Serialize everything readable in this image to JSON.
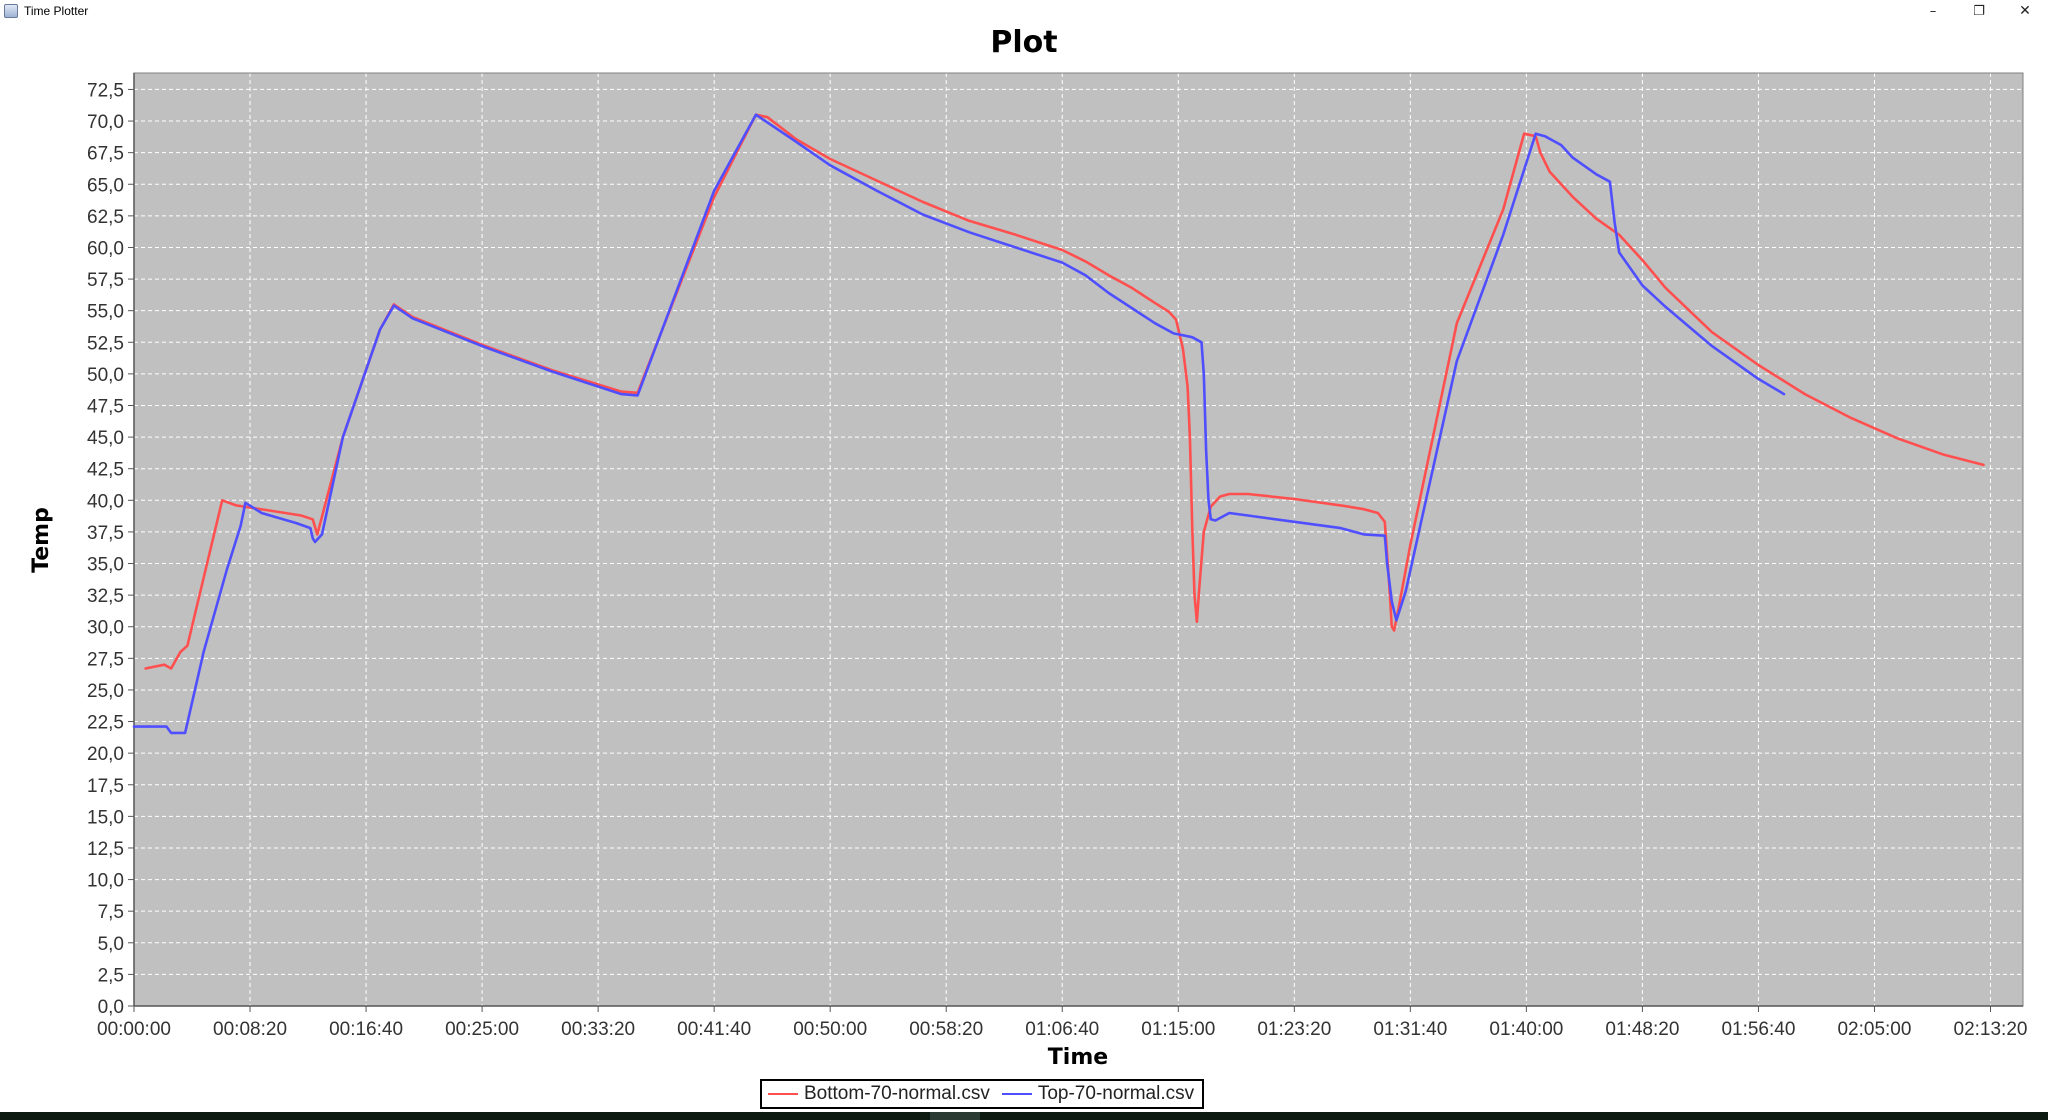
{
  "window": {
    "title": "Time Plotter",
    "minimize_icon": "minimize-icon",
    "restore_icon": "restore-icon",
    "close_icon": "close-icon"
  },
  "colors": {
    "plot_background": "#c0c0c0",
    "grid": "#ffffff",
    "bottom_series": "#ff4f4f",
    "top_series": "#4f4fff"
  },
  "chart_data": {
    "type": "line",
    "title": "Plot",
    "xlabel": "Time",
    "ylabel": "Temp",
    "x_unit": "hh:mm:ss",
    "xlim": [
      "00:00:00",
      "02:15:40"
    ],
    "ylim": [
      0,
      73.8
    ],
    "x_ticks": [
      "00:00:00",
      "00:08:20",
      "00:16:40",
      "00:25:00",
      "00:33:20",
      "00:41:40",
      "00:50:00",
      "00:58:20",
      "01:06:40",
      "01:15:00",
      "01:23:20",
      "01:31:40",
      "01:40:00",
      "01:48:20",
      "01:56:40",
      "02:05:00",
      "02:13:20"
    ],
    "y_ticks": [
      "0,0",
      "2,5",
      "5,0",
      "7,5",
      "10,0",
      "12,5",
      "15,0",
      "17,5",
      "20,0",
      "22,5",
      "25,0",
      "27,5",
      "30,0",
      "32,5",
      "35,0",
      "37,5",
      "40,0",
      "42,5",
      "45,0",
      "47,5",
      "50,0",
      "52,5",
      "55,0",
      "57,5",
      "60,0",
      "62,5",
      "65,0",
      "67,5",
      "70,0",
      "72,5"
    ],
    "grid": true,
    "legend_position": "bottom-center",
    "series": [
      {
        "name": "Bottom-70-normal.csv",
        "color": "#ff4f4f",
        "points": [
          [
            "00:00:50",
            26.7
          ],
          [
            "00:02:10",
            27.0
          ],
          [
            "00:02:40",
            26.7
          ],
          [
            "00:03:20",
            28.0
          ],
          [
            "00:03:50",
            28.5
          ],
          [
            "00:06:20",
            40.0
          ],
          [
            "00:07:20",
            39.6
          ],
          [
            "00:09:40",
            39.2
          ],
          [
            "00:12:00",
            38.8
          ],
          [
            "00:12:50",
            38.5
          ],
          [
            "00:13:10",
            37.3
          ],
          [
            "00:15:00",
            45.0
          ],
          [
            "00:17:40",
            53.5
          ],
          [
            "00:18:40",
            55.5
          ],
          [
            "00:20:00",
            54.5
          ],
          [
            "00:25:00",
            52.3
          ],
          [
            "00:30:00",
            50.3
          ],
          [
            "00:35:00",
            48.6
          ],
          [
            "00:36:10",
            48.5
          ],
          [
            "00:41:40",
            64.0
          ],
          [
            "00:44:40",
            70.5
          ],
          [
            "00:45:30",
            70.3
          ],
          [
            "00:47:30",
            68.6
          ],
          [
            "00:50:00",
            67.0
          ],
          [
            "00:53:20",
            65.3
          ],
          [
            "00:56:40",
            63.6
          ],
          [
            "01:00:00",
            62.1
          ],
          [
            "01:03:20",
            61.0
          ],
          [
            "01:06:40",
            59.8
          ],
          [
            "01:08:20",
            58.9
          ],
          [
            "01:10:00",
            57.8
          ],
          [
            "01:11:40",
            56.8
          ],
          [
            "01:13:20",
            55.6
          ],
          [
            "01:14:20",
            54.9
          ],
          [
            "01:14:50",
            54.3
          ],
          [
            "01:15:20",
            52.0
          ],
          [
            "01:15:40",
            49.0
          ],
          [
            "01:15:50",
            45.0
          ],
          [
            "01:16:00",
            38.0
          ],
          [
            "01:16:10",
            32.5
          ],
          [
            "01:16:20",
            30.4
          ],
          [
            "01:16:30",
            33.0
          ],
          [
            "01:16:50",
            37.5
          ],
          [
            "01:17:20",
            39.5
          ],
          [
            "01:18:00",
            40.3
          ],
          [
            "01:18:40",
            40.5
          ],
          [
            "01:20:00",
            40.5
          ],
          [
            "01:23:20",
            40.1
          ],
          [
            "01:26:40",
            39.6
          ],
          [
            "01:28:20",
            39.3
          ],
          [
            "01:29:20",
            39.0
          ],
          [
            "01:29:50",
            38.3
          ],
          [
            "01:30:10",
            33.0
          ],
          [
            "01:30:20",
            30.0
          ],
          [
            "01:30:30",
            29.7
          ],
          [
            "01:30:50",
            31.5
          ],
          [
            "01:31:40",
            36.5
          ],
          [
            "01:35:00",
            54.0
          ],
          [
            "01:38:20",
            63.0
          ],
          [
            "01:39:50",
            69.0
          ],
          [
            "01:40:40",
            68.8
          ],
          [
            "01:41:00",
            67.5
          ],
          [
            "01:41:40",
            66.0
          ],
          [
            "01:43:20",
            64.0
          ],
          [
            "01:45:00",
            62.3
          ],
          [
            "01:46:40",
            61.0
          ],
          [
            "01:48:20",
            59.0
          ],
          [
            "01:50:00",
            56.8
          ],
          [
            "01:53:20",
            53.3
          ],
          [
            "01:56:40",
            50.7
          ],
          [
            "02:00:00",
            48.4
          ],
          [
            "02:03:20",
            46.5
          ],
          [
            "02:06:40",
            44.9
          ],
          [
            "02:10:00",
            43.6
          ],
          [
            "02:12:50",
            42.8
          ]
        ]
      },
      {
        "name": "Top-70-normal.csv",
        "color": "#4f4fff",
        "points": [
          [
            "00:00:00",
            22.1
          ],
          [
            "00:02:20",
            22.1
          ],
          [
            "00:02:40",
            21.6
          ],
          [
            "00:03:40",
            21.6
          ],
          [
            "00:05:00",
            28.0
          ],
          [
            "00:06:40",
            34.5
          ],
          [
            "00:07:40",
            38.0
          ],
          [
            "00:08:00",
            39.8
          ],
          [
            "00:09:10",
            39.0
          ],
          [
            "00:11:40",
            38.2
          ],
          [
            "00:12:40",
            37.8
          ],
          [
            "00:12:50",
            37.0
          ],
          [
            "00:13:00",
            36.7
          ],
          [
            "00:13:30",
            37.3
          ],
          [
            "00:15:00",
            45.0
          ],
          [
            "00:17:40",
            53.5
          ],
          [
            "00:18:40",
            55.4
          ],
          [
            "00:20:00",
            54.4
          ],
          [
            "00:25:00",
            52.2
          ],
          [
            "00:30:00",
            50.2
          ],
          [
            "00:35:00",
            48.4
          ],
          [
            "00:36:10",
            48.3
          ],
          [
            "00:41:40",
            64.5
          ],
          [
            "00:44:40",
            70.5
          ],
          [
            "00:47:30",
            68.4
          ],
          [
            "00:50:00",
            66.5
          ],
          [
            "00:53:20",
            64.5
          ],
          [
            "00:56:40",
            62.6
          ],
          [
            "01:00:00",
            61.2
          ],
          [
            "01:03:20",
            60.0
          ],
          [
            "01:06:40",
            58.8
          ],
          [
            "01:08:20",
            57.8
          ],
          [
            "01:10:00",
            56.4
          ],
          [
            "01:11:40",
            55.2
          ],
          [
            "01:13:20",
            54.0
          ],
          [
            "01:14:40",
            53.2
          ],
          [
            "01:16:00",
            52.9
          ],
          [
            "01:16:40",
            52.5
          ],
          [
            "01:16:50",
            50.0
          ],
          [
            "01:17:00",
            44.0
          ],
          [
            "01:17:10",
            40.0
          ],
          [
            "01:17:20",
            38.5
          ],
          [
            "01:17:40",
            38.4
          ],
          [
            "01:18:40",
            39.0
          ],
          [
            "01:20:00",
            38.8
          ],
          [
            "01:23:20",
            38.3
          ],
          [
            "01:26:40",
            37.8
          ],
          [
            "01:28:20",
            37.3
          ],
          [
            "01:29:50",
            37.2
          ],
          [
            "01:30:00",
            35.0
          ],
          [
            "01:30:20",
            32.0
          ],
          [
            "01:30:40",
            30.5
          ],
          [
            "01:31:20",
            32.8
          ],
          [
            "01:35:00",
            51.0
          ],
          [
            "01:38:20",
            61.0
          ],
          [
            "01:40:40",
            69.0
          ],
          [
            "01:41:20",
            68.8
          ],
          [
            "01:42:30",
            68.1
          ],
          [
            "01:43:20",
            67.1
          ],
          [
            "01:45:00",
            65.8
          ],
          [
            "01:46:00",
            65.2
          ],
          [
            "01:46:20",
            62.0
          ],
          [
            "01:46:40",
            59.6
          ],
          [
            "01:48:20",
            57.0
          ],
          [
            "01:50:00",
            55.3
          ],
          [
            "01:53:20",
            52.2
          ],
          [
            "01:56:40",
            49.6
          ],
          [
            "01:58:30",
            48.4
          ]
        ]
      }
    ]
  }
}
